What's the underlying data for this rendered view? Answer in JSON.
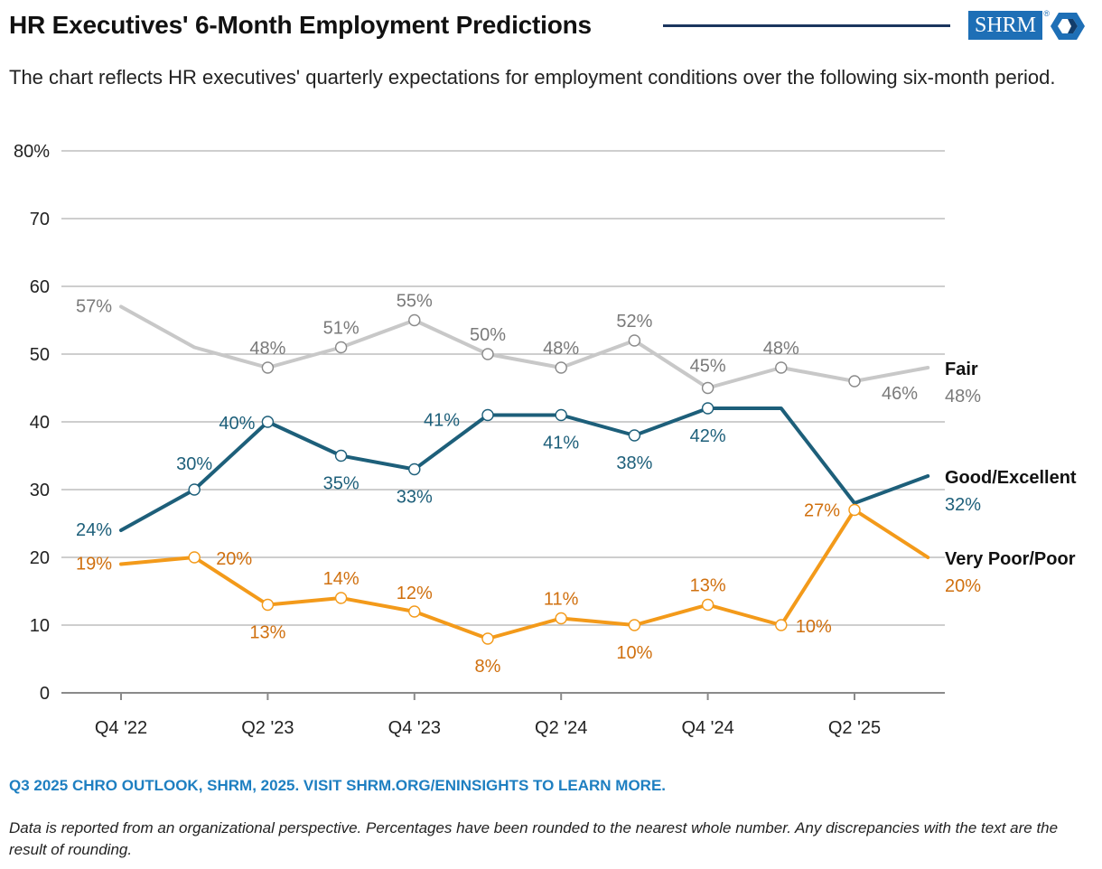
{
  "header": {
    "title": "HR Executives' 6-Month Employment Predictions",
    "subtitle": "The chart reflects HR executives' quarterly expectations for employment conditions over the following six-month period.",
    "logo_text": "SHRM",
    "logo_registered": "®"
  },
  "colors": {
    "fair": "#c8c8c8",
    "fair_label": "#7a7a7a",
    "good": "#1d5f7a",
    "poor": "#f39a1a",
    "poor_label": "#d0700f",
    "grid": "#bdbdbd",
    "brand_blue": "#1e6fb6",
    "title_rule": "#1b355e",
    "source": "#1e7fc1"
  },
  "chart_data": {
    "type": "line",
    "x": [
      "Q4 '22",
      "Q1 '23",
      "Q2 '23",
      "Q3 '23",
      "Q4 '23",
      "Q1 '24",
      "Q2 '24",
      "Q3 '24",
      "Q4 '24",
      "Q1 '25",
      "Q2 '25",
      "Q3 '25"
    ],
    "x_tick_labels": [
      "Q4 '22",
      "Q2 '23",
      "Q4 '23",
      "Q2 '24",
      "Q4 '24",
      "Q2 '25"
    ],
    "x_tick_indices": [
      0,
      2,
      4,
      6,
      8,
      10
    ],
    "ylim": [
      0,
      80
    ],
    "y_ticks": [
      0,
      10,
      20,
      30,
      40,
      50,
      60,
      70,
      80
    ],
    "y_tick_labels": [
      "0",
      "10",
      "20",
      "30",
      "40",
      "50",
      "60",
      "70",
      "80%"
    ],
    "grid": true,
    "legend": "end-of-line labels",
    "series": [
      {
        "name": "Fair",
        "key": "fair",
        "values": [
          57,
          51,
          48,
          51,
          55,
          50,
          48,
          52,
          45,
          48,
          46,
          48
        ],
        "point_labels": [
          "57%",
          "",
          "48%",
          "51%",
          "55%",
          "50%",
          "48%",
          "52%",
          "45%",
          "48%",
          "46%",
          "48%"
        ],
        "markers": [
          false,
          false,
          true,
          true,
          true,
          true,
          true,
          true,
          true,
          true,
          true,
          false
        ]
      },
      {
        "name": "Good/Excellent",
        "key": "good",
        "values": [
          24,
          30,
          40,
          35,
          33,
          41,
          41,
          38,
          42,
          42,
          28,
          32
        ],
        "point_labels": [
          "24%",
          "30%",
          "40%",
          "35%",
          "33%",
          "41%",
          "41%",
          "38%",
          "42%",
          "",
          "",
          "32%"
        ],
        "markers": [
          false,
          true,
          true,
          true,
          true,
          true,
          true,
          true,
          true,
          false,
          false,
          false
        ]
      },
      {
        "name": "Very Poor/Poor",
        "key": "poor",
        "values": [
          19,
          20,
          13,
          14,
          12,
          8,
          11,
          10,
          13,
          10,
          27,
          20
        ],
        "point_labels": [
          "19%",
          "20%",
          "13%",
          "14%",
          "12%",
          "8%",
          "11%",
          "10%",
          "13%",
          "10%",
          "27%",
          "20%"
        ],
        "markers": [
          false,
          true,
          true,
          true,
          true,
          true,
          true,
          true,
          true,
          true,
          true,
          false
        ]
      }
    ]
  },
  "footer": {
    "source": "Q3 2025 CHRO OUTLOOK, SHRM, 2025. VISIT SHRM.ORG/ENINSIGHTS TO LEARN MORE.",
    "note": "Data is reported from an organizational perspective. Percentages have been rounded to the nearest whole number. Any discrepancies with the text are the result of rounding."
  }
}
